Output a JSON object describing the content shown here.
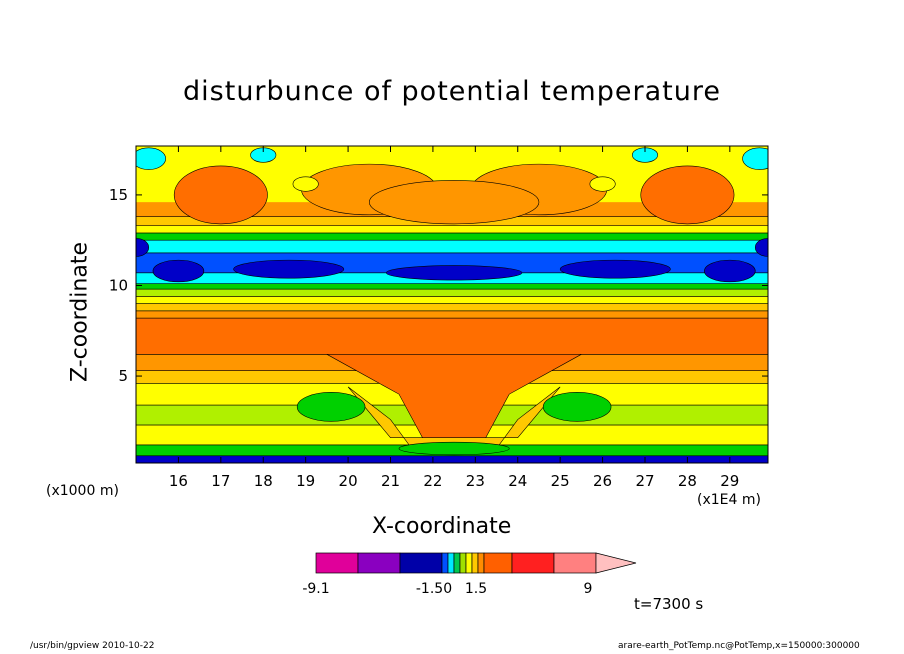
{
  "chart_data": {
    "type": "heatmap",
    "title": "disturbunce of potential temperature",
    "xlabel": "X-coordinate",
    "ylabel": "Z-coordinate",
    "x_unit": "(x1E4 m)",
    "y_unit": "(x1000 m)",
    "x_ticks": [
      16,
      17,
      18,
      19,
      20,
      21,
      22,
      23,
      24,
      25,
      26,
      27,
      28,
      29
    ],
    "y_ticks": [
      5,
      10,
      15
    ],
    "xlim": [
      15,
      29.9
    ],
    "ylim": [
      0.2,
      17.7
    ],
    "colorbar": {
      "labels": [
        "-9.1",
        "-1.50",
        "1.5",
        "9"
      ],
      "colors": [
        "#e0009a",
        "#8a00c0",
        "#0000a8",
        "#0050ff",
        "#00e8ff",
        "#00c850",
        "#a0e000",
        "#ffff00",
        "#ffc800",
        "#ff8c00",
        "#ff6000",
        "#ff2020",
        "#ff8080",
        "#ffc0c0"
      ]
    },
    "field_colors": {
      "deep_blue": "#0000c8",
      "blue": "#0050ff",
      "cyan": "#00ffff",
      "green": "#00d000",
      "yellow_green": "#b0f000",
      "yellow": "#ffff00",
      "gold": "#ffc800",
      "orange": "#ff9600",
      "dark_orange": "#ff6e00"
    },
    "annotation": "t=7300 s"
  },
  "footer": {
    "left": "/usr/bin/gpview   2010-10-22",
    "right": "arare-earth_PotTemp.nc@PotTemp,x=150000:300000"
  }
}
